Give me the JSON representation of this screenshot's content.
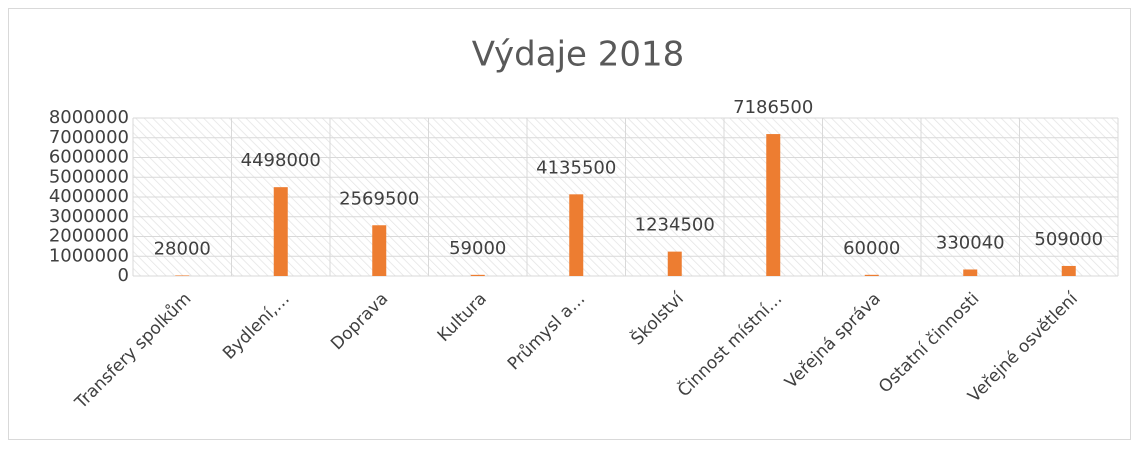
{
  "chart_data": {
    "type": "bar",
    "title": "Výdaje 2018",
    "categories": [
      "Transfery spolkům",
      "Bydlení,…",
      "Doprava",
      "Kultura",
      "Průmysl a…",
      "Školství",
      "Činnost místní…",
      "Veřejná správa",
      "Ostatní činnosti",
      "Veřejné osvětlení"
    ],
    "values": [
      28000,
      4498000,
      2569500,
      59000,
      4135500,
      1234500,
      7186500,
      60000,
      330040,
      509000
    ],
    "color": "#ed7d31",
    "ylim": [
      0,
      8000000
    ],
    "yticks": [
      0,
      1000000,
      2000000,
      3000000,
      4000000,
      5000000,
      6000000,
      7000000,
      8000000
    ],
    "grid": true
  }
}
